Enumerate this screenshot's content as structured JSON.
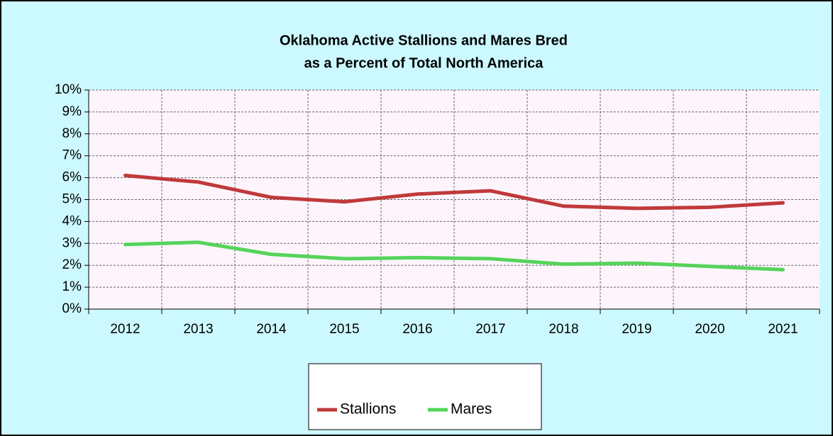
{
  "chart_data": {
    "type": "line",
    "title": [
      "Oklahoma Active Stallions and Mares Bred",
      "as a Percent of Total North America"
    ],
    "categories": [
      "2012",
      "2013",
      "2014",
      "2015",
      "2016",
      "2017",
      "2018",
      "2019",
      "2020",
      "2021"
    ],
    "series": [
      {
        "name": "Stallions",
        "color": "#c0393b",
        "values": [
          6.1,
          5.8,
          5.1,
          4.9,
          5.25,
          5.4,
          4.7,
          4.6,
          4.65,
          4.85
        ]
      },
      {
        "name": "Mares",
        "color": "#55d45a",
        "values": [
          2.95,
          3.05,
          2.5,
          2.3,
          2.35,
          2.3,
          2.05,
          2.1,
          1.95,
          1.8
        ]
      }
    ],
    "ylim": [
      0,
      10
    ],
    "yticks": [
      {
        "value": 0,
        "label": "0%"
      },
      {
        "value": 1,
        "label": "1%"
      },
      {
        "value": 2,
        "label": "2%"
      },
      {
        "value": 3,
        "label": "3%"
      },
      {
        "value": 4,
        "label": "4%"
      },
      {
        "value": 5,
        "label": "5%"
      },
      {
        "value": 6,
        "label": "6%"
      },
      {
        "value": 7,
        "label": "7%"
      },
      {
        "value": 8,
        "label": "8%"
      },
      {
        "value": 9,
        "label": "9%"
      },
      {
        "value": 10,
        "label": "10%"
      }
    ],
    "grid": true,
    "legend": "bottom"
  }
}
